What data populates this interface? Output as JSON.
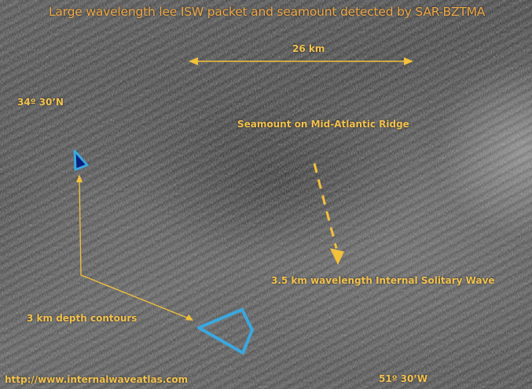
{
  "title": "Large wavelength lee ISW packet and seamount detected by SAR-BZTMA",
  "scale_bar": {
    "label": "26 km"
  },
  "latitude_label": "34º 30’N",
  "longitude_label": "51º 30’W",
  "seamount_label": "Seamount on Mid-Atlantic Ridge",
  "isw_label": "3.5 km wavelength Internal Solitary Wave",
  "depth_contours_label": "3 km depth contours",
  "source_url": "http://www.internalwaveatlas.com",
  "colors": {
    "annotation_text": "#f2c14e",
    "title_text": "#f0a845",
    "arrow": "#f3c13a",
    "contour_outline": "#3aa8e0",
    "contour_fill": "#0a1e7a"
  }
}
